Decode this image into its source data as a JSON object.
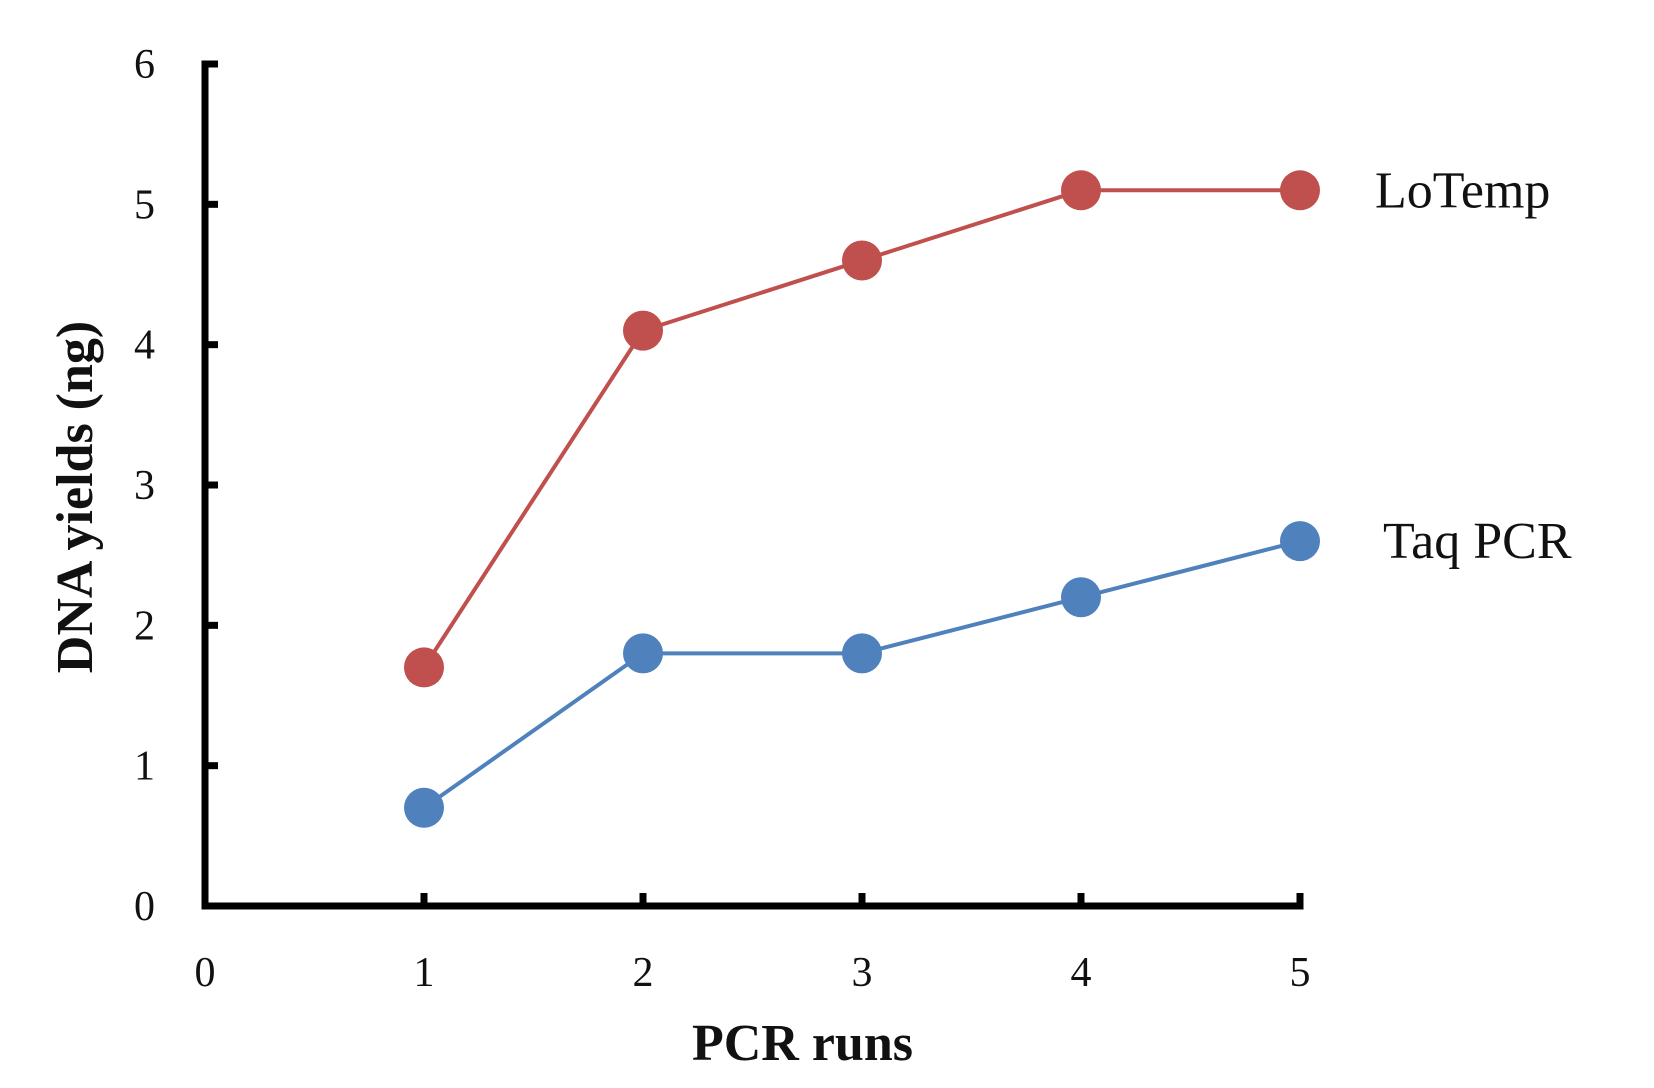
{
  "chart_data": {
    "type": "line",
    "title": "",
    "xlabel": "PCR runs",
    "ylabel": "DNA yields (ng)",
    "xlim": [
      0,
      5
    ],
    "ylim": [
      0,
      6
    ],
    "x_ticks": [
      "0",
      "1",
      "2",
      "3",
      "4",
      "5"
    ],
    "y_ticks": [
      "0",
      "1",
      "2",
      "3",
      "4",
      "5",
      "6"
    ],
    "grid": false,
    "legend": "direct labels at right end of each line",
    "x": [
      1,
      2,
      3,
      4,
      5
    ],
    "series": [
      {
        "name": "LoTemp",
        "values": [
          1.7,
          4.1,
          4.6,
          5.1,
          5.1
        ],
        "color": "#C0504D"
      },
      {
        "name": "Taq PCR",
        "values": [
          0.7,
          1.8,
          1.8,
          2.2,
          2.6
        ],
        "color": "#4F81BD"
      }
    ]
  }
}
